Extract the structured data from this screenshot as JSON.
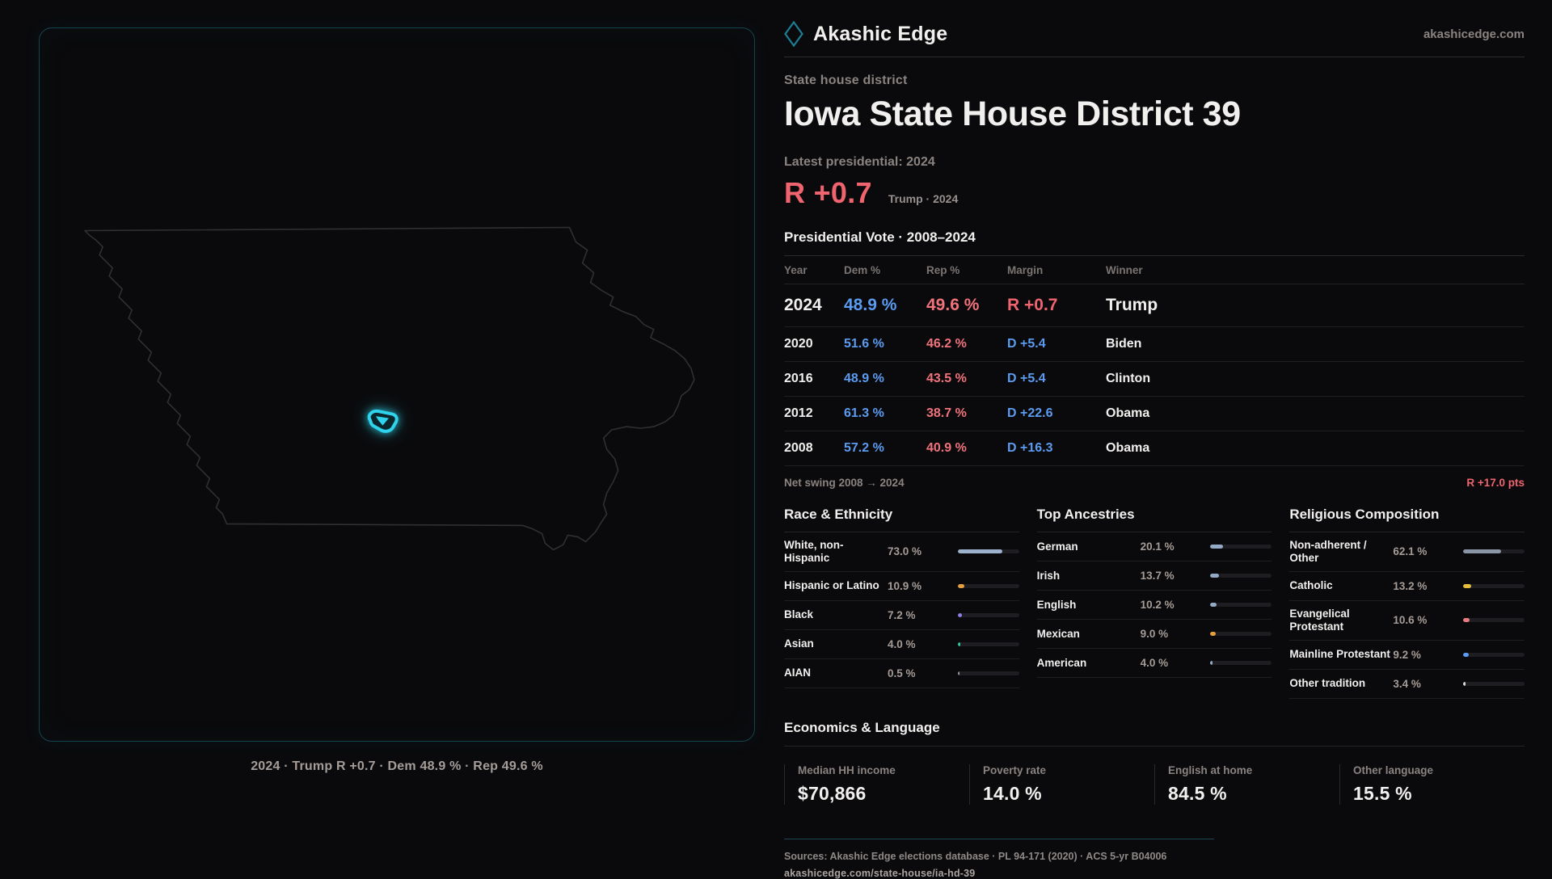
{
  "brand": {
    "name": "Akashic Edge",
    "domain": "akashicedge.com",
    "accent_teal": "#17434f",
    "logo": "diamond-outline-icon"
  },
  "page": {
    "kicker": "State house district",
    "title": "Iowa State House District 39",
    "latest_label": "Latest presidential: 2024",
    "headline_margin": "R +0.7",
    "headline_context": "Trump · 2024"
  },
  "vote_table": {
    "title": "Presidential Vote · 2008–2024",
    "columns": [
      "Year",
      "Dem %",
      "Rep %",
      "Margin",
      "Winner"
    ],
    "rows": [
      {
        "year": "2024",
        "dem": "48.9 %",
        "rep": "49.6 %",
        "margin": "R +0.7",
        "margin_party": "R",
        "winner": "Trump",
        "highlight": true
      },
      {
        "year": "2020",
        "dem": "51.6 %",
        "rep": "46.2 %",
        "margin": "D +5.4",
        "margin_party": "D",
        "winner": "Biden",
        "highlight": false
      },
      {
        "year": "2016",
        "dem": "48.9 %",
        "rep": "43.5 %",
        "margin": "D +5.4",
        "margin_party": "D",
        "winner": "Clinton",
        "highlight": false
      },
      {
        "year": "2012",
        "dem": "61.3 %",
        "rep": "38.7 %",
        "margin": "D +22.6",
        "margin_party": "D",
        "winner": "Obama",
        "highlight": false
      },
      {
        "year": "2008",
        "dem": "57.2 %",
        "rep": "40.9 %",
        "margin": "D +16.3",
        "margin_party": "D",
        "winner": "Obama",
        "highlight": false
      }
    ]
  },
  "net_swing": {
    "label": "Net swing 2008 → 2024",
    "value": "R +17.0 pts"
  },
  "demographics": [
    {
      "title": "Race & Ethnicity",
      "rows": [
        {
          "label": "White, non-Hispanic",
          "value": "73.0 %",
          "pct": 73.0,
          "color": "#9cb2cd"
        },
        {
          "label": "Hispanic or Latino",
          "value": "10.9 %",
          "pct": 10.9,
          "color": "#e59f3d"
        },
        {
          "label": "Black",
          "value": "7.2 %",
          "pct": 7.2,
          "color": "#8f7fe8"
        },
        {
          "label": "Asian",
          "value": "4.0 %",
          "pct": 4.0,
          "color": "#2fc79f"
        },
        {
          "label": "AIAN",
          "value": "0.5 %",
          "pct": 0.5,
          "color": "#9a9a9a"
        }
      ]
    },
    {
      "title": "Top Ancestries",
      "rows": [
        {
          "label": "German",
          "value": "20.1 %",
          "pct": 20.1,
          "color": "#93a9c6"
        },
        {
          "label": "Irish",
          "value": "13.7 %",
          "pct": 13.7,
          "color": "#93a9c6"
        },
        {
          "label": "English",
          "value": "10.2 %",
          "pct": 10.2,
          "color": "#93a9c6"
        },
        {
          "label": "Mexican",
          "value": "9.0 %",
          "pct": 9.0,
          "color": "#e59f3d"
        },
        {
          "label": "American",
          "value": "4.0 %",
          "pct": 4.0,
          "color": "#93a9c6"
        }
      ]
    },
    {
      "title": "Religious Composition",
      "rows": [
        {
          "label": "Non-adherent / Other",
          "value": "62.1 %",
          "pct": 62.1,
          "color": "#8a95a6"
        },
        {
          "label": "Catholic",
          "value": "13.2 %",
          "pct": 13.2,
          "color": "#e5bd3d"
        },
        {
          "label": "Evangelical Protestant",
          "value": "10.6 %",
          "pct": 10.6,
          "color": "#e87c80"
        },
        {
          "label": "Mainline Protestant",
          "value": "9.2 %",
          "pct": 9.2,
          "color": "#5b9bf0"
        },
        {
          "label": "Other tradition",
          "value": "3.4 %",
          "pct": 3.4,
          "color": "#d6d6d6"
        }
      ]
    }
  ],
  "economics": {
    "title": "Economics & Language",
    "stats": [
      {
        "label": "Median HH income",
        "value": "$70,866"
      },
      {
        "label": "Poverty rate",
        "value": "14.0 %"
      },
      {
        "label": "English at home",
        "value": "84.5 %"
      },
      {
        "label": "Other language",
        "value": "15.5 %"
      }
    ]
  },
  "footer": {
    "sources": "Sources: Akashic Edge elections database · PL 94-171 (2020) · ACS 5-yr B04006",
    "permalink": "akashicedge.com/state-house/ia-hd-39"
  },
  "map": {
    "caption": "2024 · Trump R +0.7 · Dem 48.9 % · Rep 49.6 %",
    "outline_color": "#2f2f34",
    "district_color": "#2fd4ec"
  }
}
